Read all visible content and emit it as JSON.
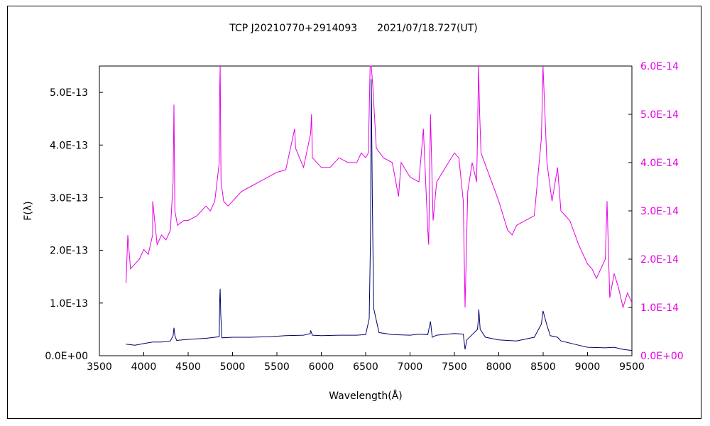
{
  "chart_data": {
    "type": "line",
    "title": "TCP J20210770+2914093　　2021/07/18.727(UT)",
    "xlabel": "Wavelength(Å)",
    "ylabel": "F(λ)",
    "xlim": [
      3500,
      9500
    ],
    "ylim_left": [
      0,
      5.5e-13
    ],
    "ylim_right": [
      0,
      6e-14
    ],
    "x_ticks": [
      "3500",
      "4000",
      "4500",
      "5000",
      "5500",
      "6000",
      "6500",
      "7000",
      "7500",
      "8000",
      "8500",
      "9000",
      "9500"
    ],
    "y_left_ticks": [
      {
        "label": "0.0E+00",
        "value": 0
      },
      {
        "label": "1.0E-13",
        "value": 1e-13
      },
      {
        "label": "2.0E-13",
        "value": 2e-13
      },
      {
        "label": "3.0E-13",
        "value": 3e-13
      },
      {
        "label": "4.0E-13",
        "value": 4e-13
      },
      {
        "label": "5.0E-13",
        "value": 5e-13
      }
    ],
    "y_right_ticks": [
      {
        "label": "0.0E+00",
        "value": 0
      },
      {
        "label": "1.0E-14",
        "value": 1e-14
      },
      {
        "label": "2.0E-14",
        "value": 2e-14
      },
      {
        "label": "3.0E-14",
        "value": 3e-14
      },
      {
        "label": "4.0E-14",
        "value": 4e-14
      },
      {
        "label": "5.0E-14",
        "value": 5e-14
      },
      {
        "label": "6.0E-14",
        "value": 6e-14
      }
    ],
    "grid": false,
    "series": [
      {
        "axis": "left",
        "color": "#000066",
        "x": [
          3800,
          3900,
          4000,
          4100,
          4200,
          4300,
          4330,
          4340,
          4350,
          4370,
          4500,
          4700,
          4850,
          4855,
          4861,
          4867,
          4880,
          5000,
          5200,
          5400,
          5600,
          5800,
          5875,
          5880,
          5900,
          6000,
          6200,
          6400,
          6500,
          6540,
          6555,
          6563,
          6575,
          6590,
          6650,
          6800,
          7000,
          7100,
          7200,
          7230,
          7250,
          7300,
          7500,
          7600,
          7620,
          7640,
          7700,
          7760,
          7770,
          7775,
          7790,
          7850,
          8000,
          8200,
          8400,
          8480,
          8498,
          8542,
          8580,
          8662,
          8700,
          8900,
          9000,
          9200,
          9300,
          9400,
          9500
        ],
        "y": [
          2.2e-14,
          2e-14,
          2.3e-14,
          2.6e-14,
          2.6e-14,
          2.8e-14,
          3.8e-14,
          5.3e-14,
          3.8e-14,
          2.9e-14,
          3.1e-14,
          3.3e-14,
          3.6e-14,
          1.05e-13,
          1.27e-13,
          8e-14,
          3.4e-14,
          3.5e-14,
          3.5e-14,
          3.6e-14,
          3.8e-14,
          3.9e-14,
          4.2e-14,
          4.8e-14,
          3.9e-14,
          3.8e-14,
          3.9e-14,
          3.9e-14,
          4e-14,
          7e-14,
          2.3e-13,
          5.25e-13,
          3e-13,
          9e-14,
          4.4e-14,
          4e-14,
          3.9e-14,
          4.1e-14,
          4e-14,
          6.5e-14,
          3.5e-14,
          3.9e-14,
          4.2e-14,
          4.1e-14,
          1.2e-14,
          3e-14,
          4e-14,
          5e-14,
          7e-14,
          8.8e-14,
          5e-14,
          3.5e-14,
          3e-14,
          2.8e-14,
          3.5e-14,
          6e-14,
          8.5e-14,
          5.8e-14,
          3.8e-14,
          3.5e-14,
          2.8e-14,
          2e-14,
          1.6e-14,
          1.5e-14,
          1.6e-14,
          1.2e-14,
          1e-14
        ]
      },
      {
        "axis": "right",
        "color": "#e600e6",
        "x": [
          3800,
          3820,
          3850,
          3900,
          3950,
          4000,
          4050,
          4100,
          4101,
          4150,
          4200,
          4250,
          4300,
          4330,
          4340,
          4350,
          4380,
          4450,
          4500,
          4600,
          4700,
          4750,
          4800,
          4850,
          4855,
          4861,
          4870,
          4900,
          4950,
          5000,
          5100,
          5200,
          5300,
          5400,
          5500,
          5600,
          5700,
          5710,
          5800,
          5880,
          5890,
          5900,
          6000,
          6100,
          6200,
          6300,
          6400,
          6450,
          6500,
          6530,
          6550,
          6563,
          6580,
          6620,
          6700,
          6800,
          6870,
          6900,
          7000,
          7100,
          7150,
          7200,
          7210,
          7230,
          7260,
          7300,
          7400,
          7500,
          7550,
          7600,
          7620,
          7650,
          7700,
          7750,
          7760,
          7772,
          7785,
          7800,
          7900,
          8000,
          8100,
          8150,
          8200,
          8300,
          8400,
          8480,
          8498,
          8542,
          8600,
          8662,
          8700,
          8800,
          8900,
          9000,
          9050,
          9100,
          9200,
          9220,
          9250,
          9300,
          9350,
          9400,
          9450,
          9500
        ],
        "y": [
          1.5e-14,
          2.5e-14,
          1.8e-14,
          1.9e-14,
          2e-14,
          2.2e-14,
          2.1e-14,
          2.5e-14,
          3.2e-14,
          2.3e-14,
          2.5e-14,
          2.4e-14,
          2.6e-14,
          3.6e-14,
          5.2e-14,
          3e-14,
          2.7e-14,
          2.8e-14,
          2.8e-14,
          2.9e-14,
          3.1e-14,
          3e-14,
          3.2e-14,
          4e-14,
          5.5e-14,
          6e-14,
          3.6e-14,
          3.2e-14,
          3.1e-14,
          3.2e-14,
          3.4e-14,
          3.5e-14,
          3.6e-14,
          3.7e-14,
          3.8e-14,
          3.85e-14,
          4.7e-14,
          4.3e-14,
          3.9e-14,
          4.6e-14,
          5e-14,
          4.1e-14,
          3.9e-14,
          3.9e-14,
          4.1e-14,
          4e-14,
          4e-14,
          4.2e-14,
          4.1e-14,
          4.2e-14,
          6e-14,
          6e-14,
          5.6e-14,
          4.3e-14,
          4.1e-14,
          4e-14,
          3.3e-14,
          4e-14,
          3.7e-14,
          3.6e-14,
          4.7e-14,
          2.6e-14,
          2.3e-14,
          5e-14,
          2.8e-14,
          3.6e-14,
          3.9e-14,
          4.2e-14,
          4.1e-14,
          3.2e-14,
          1e-14,
          3.4e-14,
          4e-14,
          3.6e-14,
          4.5e-14,
          6e-14,
          5e-14,
          4.2e-14,
          3.7e-14,
          3.2e-14,
          2.6e-14,
          2.5e-14,
          2.7e-14,
          2.8e-14,
          2.9e-14,
          4.5e-14,
          6e-14,
          4e-14,
          3.2e-14,
          3.9e-14,
          3e-14,
          2.8e-14,
          2.3e-14,
          1.9e-14,
          1.8e-14,
          1.6e-14,
          2e-14,
          3.2e-14,
          1.2e-14,
          1.7e-14,
          1.4e-14,
          1e-14,
          1.3e-14,
          1.1e-14
        ]
      }
    ]
  }
}
